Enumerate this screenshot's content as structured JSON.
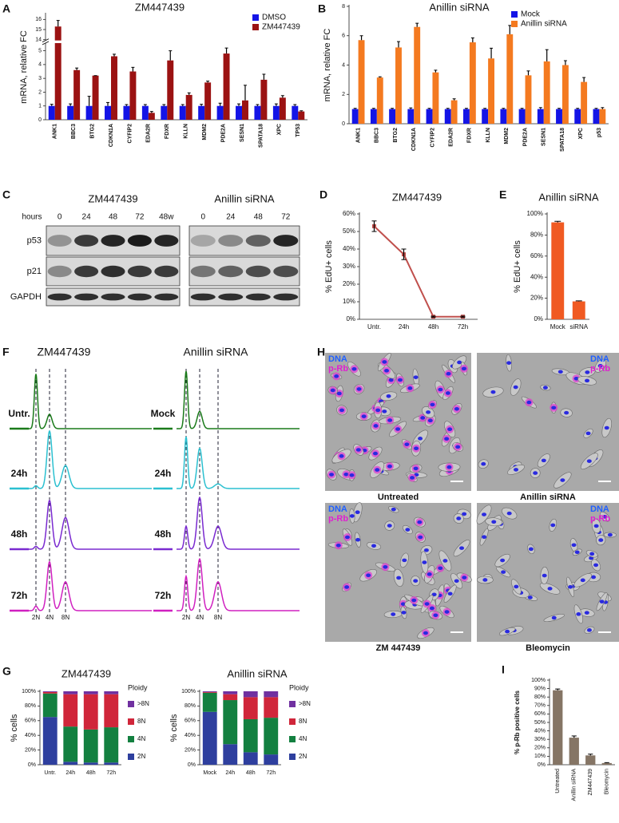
{
  "panel_labels": [
    "A",
    "B",
    "C",
    "D",
    "E",
    "F",
    "G",
    "H",
    "I"
  ],
  "chart_data": [
    {
      "type": "bar",
      "title": "ZM447439",
      "ylabel": "mRNA, relative FC",
      "categories": [
        "ANK1",
        "BBC3",
        "BTG2",
        "CDKN1A",
        "CYFIP2",
        "EDA2R",
        "FDXR",
        "KLLN",
        "MDM2",
        "PDE2A",
        "SESN1",
        "SPATA18",
        "XPC",
        "TP53"
      ],
      "series": [
        {
          "name": "DMSO",
          "color": "#1414e6",
          "values": [
            1,
            1,
            1,
            1,
            1,
            1,
            1,
            1,
            1,
            1,
            1,
            1,
            1,
            1
          ],
          "errors": [
            0.12,
            0.15,
            0.7,
            0.25,
            0.1,
            0.1,
            0.1,
            0.1,
            0.12,
            0.2,
            0.15,
            0.1,
            0.15,
            0.1
          ]
        },
        {
          "name": "ZM447439",
          "color": "#9b1212",
          "values": [
            15.3,
            3.6,
            3.2,
            4.6,
            3.5,
            0.5,
            4.3,
            1.8,
            2.7,
            4.8,
            1.4,
            2.9,
            1.6,
            0.6
          ],
          "errors": [
            0.6,
            0.15,
            0,
            0.15,
            0.3,
            0.1,
            0.7,
            0.15,
            0.1,
            0.4,
            1.1,
            0.4,
            0.15,
            0.05
          ]
        }
      ],
      "ylim": [
        0,
        16.5
      ],
      "axis_break": [
        5.5,
        14
      ],
      "yticks": [
        0,
        1,
        2,
        3,
        4,
        5,
        14,
        15,
        16
      ],
      "legend": "upper right"
    },
    {
      "type": "bar",
      "title": "Anillin siRNA",
      "ylabel": "mRNA, relative FC",
      "categories": [
        "ANK1",
        "BBC3",
        "BTG2",
        "CDKN1A",
        "CYFIP2",
        "EDA2R",
        "FDXR",
        "KLLN",
        "MDM2",
        "PDE2A",
        "SESN1",
        "SPATA18",
        "XPC",
        "p53"
      ],
      "series": [
        {
          "name": "Mock",
          "color": "#1414e6",
          "values": [
            1,
            1,
            1,
            1,
            1,
            1,
            1,
            1,
            1,
            1,
            1,
            1,
            1,
            1
          ],
          "errors": [
            0.05,
            0.05,
            0.05,
            0.08,
            0.05,
            0.05,
            0.05,
            0.05,
            0.05,
            0.05,
            0.1,
            0.05,
            0.05,
            0.05
          ]
        },
        {
          "name": "Anillin siRNA",
          "color": "#f47a20",
          "values": [
            5.7,
            3.15,
            5.2,
            6.6,
            3.5,
            1.6,
            5.55,
            4.45,
            6.1,
            3.3,
            4.25,
            4.0,
            2.85,
            1.0
          ],
          "errors": [
            0.3,
            0.05,
            0.4,
            0.25,
            0.15,
            0.1,
            0.3,
            0.7,
            0.6,
            0.3,
            0.8,
            0.3,
            0.3,
            0.1
          ]
        }
      ],
      "ylim": [
        0,
        8
      ],
      "yticks": [
        0,
        2,
        4,
        6,
        8
      ],
      "legend": "upper right"
    },
    {
      "type": "line",
      "title": "ZM447439",
      "ylabel": "% EdU+ cells",
      "categories": [
        "Untr.",
        "24h",
        "48h",
        "72h"
      ],
      "values": [
        53,
        37,
        1.5,
        1.5
      ],
      "errors": [
        3,
        3,
        0.3,
        0.3
      ],
      "color": "#c0504d",
      "ylim": [
        0,
        60
      ],
      "yticks": [
        {
          "value": 0,
          "label": "0%"
        },
        {
          "value": 10,
          "label": "10%"
        },
        {
          "value": 20,
          "label": "20%"
        },
        {
          "value": 30,
          "label": "30%"
        },
        {
          "value": 40,
          "label": "40%"
        },
        {
          "value": 50,
          "label": "50%"
        },
        {
          "value": 60,
          "label": "60%"
        }
      ]
    },
    {
      "type": "bar",
      "title": "Anillin siRNA",
      "ylabel": "% EdU+ cells",
      "categories": [
        "Mock",
        "siRNA"
      ],
      "values": [
        92,
        17
      ],
      "errors": [
        1,
        0.5
      ],
      "color": "#f05a22",
      "ylim": [
        0,
        100
      ],
      "yticks": [
        {
          "value": 0,
          "label": "0%"
        },
        {
          "value": 20,
          "label": "20%"
        },
        {
          "value": 40,
          "label": "40%"
        },
        {
          "value": 60,
          "label": "60%"
        },
        {
          "value": 80,
          "label": "80%"
        },
        {
          "value": 100,
          "label": "100%"
        }
      ]
    },
    {
      "type": "stacked_bar",
      "title": "ZM447439",
      "ylabel": "% cells",
      "legend_title": "Ploidy",
      "categories": [
        "Untr.",
        "24h",
        "48h",
        "72h"
      ],
      "series": [
        {
          "name": "2N",
          "color": "#2e3f9e",
          "values": [
            65,
            4,
            3,
            3
          ]
        },
        {
          "name": "4N",
          "color": "#138040",
          "values": [
            32,
            48,
            45,
            48
          ]
        },
        {
          "name": "8N",
          "color": "#d0263a",
          "values": [
            2,
            44,
            48,
            45
          ]
        },
        {
          "name": ">8N",
          "color": "#7030a0",
          "values": [
            1,
            4,
            4,
            4
          ]
        }
      ],
      "ylim": [
        0,
        100
      ],
      "yticks": [
        {
          "value": 0,
          "label": "0%"
        },
        {
          "value": 20,
          "label": "20%"
        },
        {
          "value": 40,
          "label": "40%"
        },
        {
          "value": 60,
          "label": "60%"
        },
        {
          "value": 80,
          "label": "80%"
        },
        {
          "value": 100,
          "label": "100%"
        }
      ]
    },
    {
      "type": "stacked_bar",
      "title": "Anillin siRNA",
      "ylabel": "% cells",
      "legend_title": "Ploidy",
      "categories": [
        "Mock",
        "24h",
        "48h",
        "72h"
      ],
      "series": [
        {
          "name": "2N",
          "color": "#2e3f9e",
          "values": [
            72,
            28,
            17,
            14
          ]
        },
        {
          "name": "4N",
          "color": "#138040",
          "values": [
            26,
            60,
            45,
            50
          ]
        },
        {
          "name": "8N",
          "color": "#d0263a",
          "values": [
            1,
            8,
            30,
            28
          ]
        },
        {
          "name": ">8N",
          "color": "#7030a0",
          "values": [
            1,
            4,
            8,
            8
          ]
        }
      ],
      "ylim": [
        0,
        100
      ],
      "yticks": [
        {
          "value": 0,
          "label": "0%"
        },
        {
          "value": 20,
          "label": "20%"
        },
        {
          "value": 40,
          "label": "40%"
        },
        {
          "value": 60,
          "label": "60%"
        },
        {
          "value": 80,
          "label": "80%"
        },
        {
          "value": 100,
          "label": "100%"
        }
      ]
    },
    {
      "type": "bar",
      "ylabel": "% p-Rb positive cells",
      "categories": [
        "Untreated",
        "Anillin siRNA",
        "ZM447439",
        "Bleomycin"
      ],
      "values": [
        88,
        32,
        11,
        2
      ],
      "errors": [
        1.5,
        2,
        1.5,
        0.5
      ],
      "color": "#857565",
      "ylim": [
        0,
        100
      ],
      "yticks": [
        {
          "value": 0,
          "label": "0%"
        },
        {
          "value": 10,
          "label": "10%"
        },
        {
          "value": 20,
          "label": "20%"
        },
        {
          "value": 30,
          "label": "30%"
        },
        {
          "value": 40,
          "label": "40%"
        },
        {
          "value": 50,
          "label": "50%"
        },
        {
          "value": 60,
          "label": "60%"
        },
        {
          "value": 70,
          "label": "70%"
        },
        {
          "value": 80,
          "label": "80%"
        },
        {
          "value": 90,
          "label": "90%"
        },
        {
          "value": 100,
          "label": "100%"
        }
      ]
    }
  ],
  "blots": {
    "rows": [
      "p53",
      "p21",
      "GAPDH"
    ],
    "left": {
      "title": "ZM447439",
      "lanes_label": "hours",
      "lanes": [
        "0",
        "24",
        "48",
        "72",
        "48w"
      ]
    },
    "right": {
      "title": "Anillin siRNA",
      "lanes": [
        "0",
        "24",
        "48",
        "72"
      ]
    }
  },
  "flow": {
    "ploidy": [
      "2N",
      "4N",
      "8N"
    ],
    "left": {
      "title": "ZM447439",
      "rows": [
        "Untr.",
        "24h",
        "48h",
        "72h"
      ]
    },
    "right": {
      "title": "Anillin siRNA",
      "rows": [
        "Mock",
        "24h",
        "48h",
        "72h"
      ]
    }
  },
  "microscopy": {
    "stains": [
      "DNA",
      "p-Rb"
    ],
    "captions": [
      "Untreated",
      "Anillin siRNA",
      "ZM 447439",
      "Bleomycin"
    ]
  }
}
